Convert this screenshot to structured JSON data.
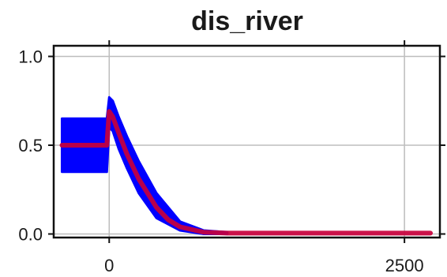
{
  "chart_data": {
    "type": "line",
    "title": "dis_river",
    "xlabel": "",
    "ylabel": "",
    "xlim": [
      -470,
      2800
    ],
    "ylim": [
      -0.02,
      1.06
    ],
    "xticks": [
      0,
      2500
    ],
    "yticks": [
      0.0,
      0.5,
      1.0
    ],
    "xtick_labels": [
      "0",
      "2500"
    ],
    "ytick_labels": [
      "0.0",
      "0.5",
      "1.0"
    ],
    "grid": true,
    "legend": "none",
    "series": [
      {
        "kind": "band",
        "color": "#0000ff",
        "x": [
          -400,
          -20,
          0,
          30,
          80,
          150,
          250,
          400,
          600,
          800,
          1000
        ],
        "upper": [
          0.65,
          0.65,
          0.77,
          0.75,
          0.66,
          0.55,
          0.41,
          0.23,
          0.07,
          0.02,
          0.01
        ],
        "lower": [
          0.35,
          0.35,
          0.6,
          0.58,
          0.48,
          0.37,
          0.23,
          0.09,
          0.02,
          0.0,
          0.0
        ]
      },
      {
        "kind": "line",
        "color": "#c8003c",
        "x": [
          -400,
          -20,
          0,
          30,
          80,
          150,
          250,
          400,
          500,
          600,
          800,
          1000,
          1500,
          2000,
          2500,
          2720
        ],
        "y": [
          0.5,
          0.5,
          0.69,
          0.66,
          0.57,
          0.45,
          0.31,
          0.15,
          0.08,
          0.04,
          0.01,
          0.005,
          0.005,
          0.005,
          0.005,
          0.005
        ]
      }
    ]
  }
}
